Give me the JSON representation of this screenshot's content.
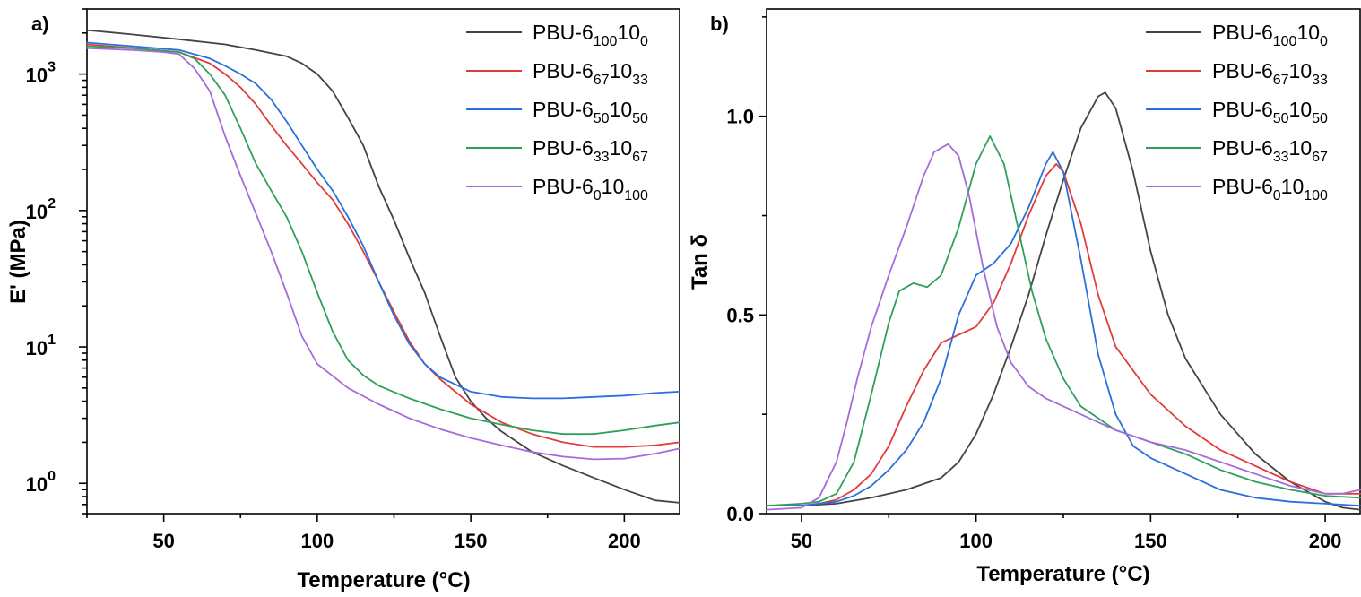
{
  "chart_data": [
    {
      "type": "line",
      "panel_label": "a)",
      "xlabel": "Temperature (°C)",
      "ylabel": "E' (MPa)",
      "yscale": "log",
      "xlim": [
        25,
        218
      ],
      "ylim": [
        0.6,
        3000
      ],
      "xticks": [
        50,
        100,
        150,
        200
      ],
      "yticks": [
        {
          "value": 1,
          "base": "10",
          "exp": "0"
        },
        {
          "value": 10,
          "base": "10",
          "exp": "1"
        },
        {
          "value": 100,
          "base": "10",
          "exp": "2"
        },
        {
          "value": 1000,
          "base": "10",
          "exp": "3"
        }
      ],
      "legend_position": "top-right",
      "series": [
        {
          "key": "s100",
          "color": "#444444",
          "label_parts": [
            {
              "t": "PBU-6"
            },
            {
              "t": "100",
              "sub": true
            },
            {
              "t": "10"
            },
            {
              "t": "0",
              "sub": true
            }
          ],
          "x": [
            25,
            40,
            55,
            70,
            80,
            90,
            95,
            100,
            105,
            110,
            115,
            120,
            125,
            130,
            135,
            140,
            145,
            150,
            155,
            160,
            170,
            180,
            190,
            200,
            210,
            218
          ],
          "y": [
            2100,
            1950,
            1800,
            1650,
            1500,
            1350,
            1200,
            1000,
            750,
            480,
            300,
            150,
            85,
            45,
            25,
            12,
            6,
            4,
            3,
            2.4,
            1.7,
            1.35,
            1.1,
            0.9,
            0.75,
            0.72
          ]
        },
        {
          "key": "s67",
          "color": "#e03c3c",
          "label_parts": [
            {
              "t": "PBU-6"
            },
            {
              "t": "67",
              "sub": true
            },
            {
              "t": "10"
            },
            {
              "t": "33",
              "sub": true
            }
          ],
          "x": [
            25,
            40,
            55,
            65,
            70,
            75,
            80,
            85,
            90,
            95,
            100,
            105,
            110,
            115,
            120,
            125,
            130,
            135,
            140,
            150,
            160,
            170,
            180,
            190,
            200,
            210,
            218
          ],
          "y": [
            1650,
            1550,
            1450,
            1200,
            1000,
            800,
            600,
            420,
            300,
            220,
            160,
            120,
            80,
            50,
            30,
            18,
            11,
            7.5,
            5.8,
            3.8,
            2.8,
            2.3,
            2.0,
            1.85,
            1.85,
            1.9,
            2.0
          ]
        },
        {
          "key": "s50",
          "color": "#2a6fdb",
          "label_parts": [
            {
              "t": "PBU-6"
            },
            {
              "t": "50",
              "sub": true
            },
            {
              "t": "10"
            },
            {
              "t": "50",
              "sub": true
            }
          ],
          "x": [
            25,
            40,
            55,
            65,
            70,
            75,
            80,
            85,
            90,
            95,
            100,
            105,
            110,
            115,
            120,
            125,
            130,
            135,
            140,
            150,
            160,
            170,
            180,
            190,
            200,
            210,
            218
          ],
          "y": [
            1700,
            1600,
            1500,
            1300,
            1150,
            1000,
            850,
            650,
            450,
            300,
            200,
            140,
            90,
            55,
            30,
            17,
            10.5,
            7.5,
            6,
            4.7,
            4.3,
            4.2,
            4.2,
            4.3,
            4.4,
            4.6,
            4.7
          ]
        },
        {
          "key": "s33",
          "color": "#2fa05a",
          "label_parts": [
            {
              "t": "PBU-6"
            },
            {
              "t": "33",
              "sub": true
            },
            {
              "t": "10"
            },
            {
              "t": "67",
              "sub": true
            }
          ],
          "x": [
            25,
            40,
            55,
            60,
            65,
            70,
            75,
            80,
            85,
            90,
            95,
            100,
            105,
            110,
            115,
            120,
            130,
            140,
            150,
            160,
            170,
            180,
            190,
            200,
            210,
            218
          ],
          "y": [
            1600,
            1550,
            1450,
            1300,
            1000,
            700,
            400,
            220,
            140,
            90,
            50,
            25,
            13,
            8,
            6.2,
            5.2,
            4.2,
            3.5,
            3.0,
            2.7,
            2.45,
            2.3,
            2.3,
            2.45,
            2.65,
            2.8
          ]
        },
        {
          "key": "s0",
          "color": "#a66bdb",
          "label_parts": [
            {
              "t": "PBU-6"
            },
            {
              "t": "0",
              "sub": true
            },
            {
              "t": "10"
            },
            {
              "t": "100",
              "sub": true
            }
          ],
          "x": [
            25,
            40,
            50,
            55,
            60,
            65,
            70,
            75,
            80,
            85,
            90,
            95,
            100,
            110,
            120,
            130,
            140,
            150,
            160,
            170,
            180,
            190,
            200,
            210,
            218
          ],
          "y": [
            1550,
            1500,
            1450,
            1400,
            1100,
            750,
            350,
            180,
            95,
            50,
            25,
            12,
            7.5,
            5,
            3.8,
            3.0,
            2.5,
            2.15,
            1.9,
            1.7,
            1.57,
            1.5,
            1.52,
            1.65,
            1.8
          ]
        }
      ]
    },
    {
      "type": "line",
      "panel_label": "b)",
      "xlabel": "Temperature (°C)",
      "ylabel": "Tan δ",
      "yscale": "linear",
      "xlim": [
        40,
        210
      ],
      "ylim": [
        0,
        1.27
      ],
      "xticks": [
        50,
        100,
        150,
        200
      ],
      "yticks": [
        {
          "value": 0,
          "label": "0.0"
        },
        {
          "value": 0.5,
          "label": "0.5"
        },
        {
          "value": 1.0,
          "label": "1.0"
        }
      ],
      "legend_position": "top-right",
      "series": [
        {
          "key": "s100",
          "color": "#444444",
          "label_parts": [
            {
              "t": "PBU-6"
            },
            {
              "t": "100",
              "sub": true
            },
            {
              "t": "10"
            },
            {
              "t": "0",
              "sub": true
            }
          ],
          "x": [
            40,
            50,
            60,
            70,
            80,
            90,
            95,
            100,
            105,
            110,
            115,
            120,
            125,
            130,
            135,
            137,
            140,
            145,
            150,
            155,
            160,
            170,
            180,
            190,
            200,
            205,
            210
          ],
          "y": [
            0.02,
            0.02,
            0.025,
            0.04,
            0.06,
            0.09,
            0.13,
            0.2,
            0.3,
            0.42,
            0.55,
            0.7,
            0.84,
            0.97,
            1.05,
            1.06,
            1.02,
            0.86,
            0.66,
            0.5,
            0.39,
            0.25,
            0.15,
            0.08,
            0.03,
            0.015,
            0.01
          ]
        },
        {
          "key": "s67",
          "color": "#e03c3c",
          "label_parts": [
            {
              "t": "PBU-6"
            },
            {
              "t": "67",
              "sub": true
            },
            {
              "t": "10"
            },
            {
              "t": "33",
              "sub": true
            }
          ],
          "x": [
            40,
            50,
            55,
            60,
            65,
            70,
            75,
            80,
            85,
            90,
            95,
            100,
            105,
            110,
            115,
            120,
            123,
            125,
            130,
            135,
            140,
            150,
            160,
            170,
            180,
            190,
            200,
            210
          ],
          "y": [
            0.02,
            0.02,
            0.025,
            0.035,
            0.06,
            0.1,
            0.17,
            0.27,
            0.36,
            0.43,
            0.45,
            0.47,
            0.53,
            0.63,
            0.75,
            0.85,
            0.88,
            0.86,
            0.73,
            0.55,
            0.42,
            0.3,
            0.22,
            0.16,
            0.12,
            0.08,
            0.05,
            0.05
          ]
        },
        {
          "key": "s50",
          "color": "#2a6fdb",
          "label_parts": [
            {
              "t": "PBU-6"
            },
            {
              "t": "50",
              "sub": true
            },
            {
              "t": "10"
            },
            {
              "t": "50",
              "sub": true
            }
          ],
          "x": [
            40,
            50,
            55,
            60,
            65,
            70,
            75,
            80,
            85,
            90,
            95,
            100,
            105,
            110,
            115,
            120,
            122,
            125,
            130,
            135,
            140,
            145,
            150,
            160,
            170,
            180,
            190,
            200,
            210
          ],
          "y": [
            0.02,
            0.02,
            0.025,
            0.03,
            0.045,
            0.07,
            0.11,
            0.16,
            0.23,
            0.34,
            0.5,
            0.6,
            0.63,
            0.68,
            0.77,
            0.88,
            0.91,
            0.86,
            0.64,
            0.4,
            0.25,
            0.17,
            0.14,
            0.1,
            0.06,
            0.04,
            0.03,
            0.025,
            0.02
          ]
        },
        {
          "key": "s33",
          "color": "#2fa05a",
          "label_parts": [
            {
              "t": "PBU-6"
            },
            {
              "t": "33",
              "sub": true
            },
            {
              "t": "10"
            },
            {
              "t": "67",
              "sub": true
            }
          ],
          "x": [
            40,
            50,
            55,
            60,
            65,
            70,
            75,
            78,
            82,
            86,
            90,
            95,
            100,
            104,
            108,
            112,
            116,
            120,
            125,
            130,
            140,
            150,
            160,
            170,
            180,
            190,
            200,
            210
          ],
          "y": [
            0.02,
            0.025,
            0.03,
            0.05,
            0.13,
            0.3,
            0.48,
            0.56,
            0.58,
            0.57,
            0.6,
            0.72,
            0.88,
            0.95,
            0.88,
            0.72,
            0.56,
            0.44,
            0.34,
            0.27,
            0.21,
            0.18,
            0.15,
            0.11,
            0.08,
            0.06,
            0.045,
            0.04
          ]
        },
        {
          "key": "s0",
          "color": "#a66bdb",
          "label_parts": [
            {
              "t": "PBU-6"
            },
            {
              "t": "0",
              "sub": true
            },
            {
              "t": "10"
            },
            {
              "t": "100",
              "sub": true
            }
          ],
          "x": [
            40,
            50,
            55,
            60,
            63,
            66,
            70,
            75,
            80,
            85,
            88,
            92,
            95,
            98,
            102,
            106,
            110,
            115,
            120,
            130,
            140,
            150,
            160,
            170,
            180,
            190,
            200,
            205,
            210
          ],
          "y": [
            0.01,
            0.015,
            0.04,
            0.13,
            0.23,
            0.34,
            0.47,
            0.6,
            0.72,
            0.85,
            0.91,
            0.93,
            0.9,
            0.8,
            0.62,
            0.47,
            0.38,
            0.32,
            0.29,
            0.25,
            0.21,
            0.18,
            0.16,
            0.13,
            0.1,
            0.07,
            0.05,
            0.05,
            0.06
          ]
        }
      ]
    }
  ]
}
